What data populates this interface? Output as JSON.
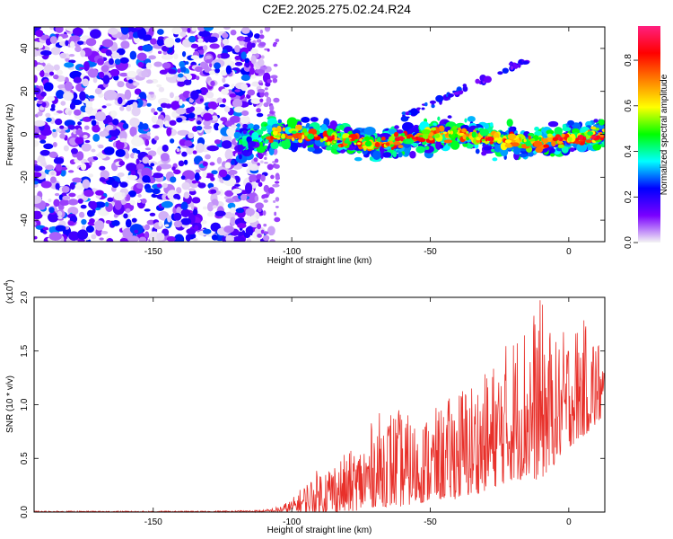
{
  "title": "C2E2.2025.275.02.24.R24",
  "chart_data": [
    {
      "type": "heatmap",
      "name": "spectrogram",
      "xlabel": "Height of straight line (km)",
      "ylabel": "Frequency (Hz)",
      "xlim": [
        -193,
        13
      ],
      "ylim": [
        -50,
        50
      ],
      "xticks": [
        -150,
        -100,
        -50,
        0
      ],
      "yticks": [
        -40,
        -20,
        0,
        20,
        40
      ],
      "colorbar": {
        "label": "Normalized spectral amplitude",
        "range": [
          0,
          0.95
        ],
        "ticks": [
          0.0,
          0.2,
          0.4,
          0.6,
          0.8
        ],
        "colors": [
          "#f4f4f4",
          "#7a00ff",
          "#0000ff",
          "#00ffff",
          "#00ff00",
          "#ffff00",
          "#ff8000",
          "#ff0000",
          "#ff2080"
        ]
      },
      "features": [
        {
          "region": "noise",
          "x_range": [
            -193,
            -115
          ],
          "freq_range": [
            -50,
            50
          ],
          "amplitude": "low (0.0-0.3)"
        },
        {
          "region": "noise-faint",
          "x_range": [
            -112,
            -105
          ],
          "freq_range": [
            -50,
            50
          ],
          "amplitude": "very low"
        },
        {
          "region": "signal-band",
          "x_range": [
            -120,
            13
          ],
          "freq_center": -2,
          "half_width_hz": 6,
          "amplitude": "high (0.4-0.95)"
        },
        {
          "region": "diagonal-echo",
          "x_range": [
            -60,
            -15
          ],
          "freq_range": [
            8,
            35
          ],
          "amplitude": "low-medium"
        }
      ]
    },
    {
      "type": "line",
      "name": "snr",
      "xlabel": "Height of straight line (km)",
      "ylabel": "SNR (10 * v/v)",
      "scale_label": "(x10",
      "scale_exp": "4",
      "xlim": [
        -193,
        13
      ],
      "ylim": [
        0,
        2.0
      ],
      "xticks": [
        -150,
        -100,
        -50,
        0
      ],
      "yticks": [
        "0.0",
        "0.5",
        "1.0",
        "1.5",
        "2.0"
      ],
      "color": "#e8302a",
      "x": [
        -193,
        -160,
        -130,
        -110,
        -105,
        -100,
        -95,
        -90,
        -85,
        -80,
        -75,
        -70,
        -65,
        -60,
        -55,
        -50,
        -45,
        -40,
        -35,
        -30,
        -25,
        -20,
        -15,
        -10,
        -5,
        0,
        5,
        10,
        13
      ],
      "envelope_max": [
        0.01,
        0.01,
        0.01,
        0.02,
        0.05,
        0.12,
        0.28,
        0.42,
        0.5,
        0.55,
        0.65,
        0.9,
        1.0,
        0.95,
        0.85,
        0.95,
        1.0,
        1.2,
        1.25,
        1.3,
        1.5,
        1.7,
        1.85,
        2.0,
        1.6,
        1.75,
        1.8,
        1.7,
        1.4
      ],
      "envelope_min": [
        0.0,
        0.0,
        0.0,
        0.0,
        0.0,
        0.0,
        0.0,
        0.0,
        0.0,
        0.0,
        0.02,
        0.05,
        0.05,
        0.05,
        0.08,
        0.1,
        0.12,
        0.12,
        0.15,
        0.2,
        0.25,
        0.3,
        0.3,
        0.3,
        0.45,
        0.6,
        0.7,
        0.8,
        0.9
      ]
    }
  ]
}
